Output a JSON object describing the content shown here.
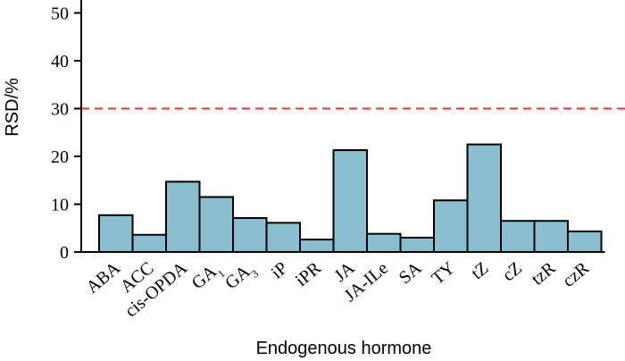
{
  "chart_data": {
    "type": "bar",
    "xlabel": "Endogenous hormone",
    "ylabel": "RSD/%",
    "ylim": [
      0,
      55
    ],
    "yticks": [
      0,
      10,
      20,
      30,
      40,
      50
    ],
    "categories": [
      "ABA",
      "ACC",
      "cis-OPDA",
      "GA1",
      "GA3",
      "iP",
      "iPR",
      "JA",
      "JA-ILe",
      "SA",
      "TY",
      "tZ",
      "cZ",
      "tzR",
      "czR"
    ],
    "category_labels": [
      {
        "base": "ABA"
      },
      {
        "base": "ACC"
      },
      {
        "base": "cis-OPDA"
      },
      {
        "base": "GA",
        "sub": "1"
      },
      {
        "base": "GA",
        "sub": "3"
      },
      {
        "base": "iP"
      },
      {
        "base": "iPR"
      },
      {
        "base": "JA"
      },
      {
        "base": "JA-ILe"
      },
      {
        "base": "SA"
      },
      {
        "base": "TY"
      },
      {
        "base": "tZ"
      },
      {
        "base": "cZ"
      },
      {
        "base": "tzR"
      },
      {
        "base": "czR"
      }
    ],
    "values": [
      7.7,
      3.6,
      14.7,
      11.5,
      7.1,
      6.1,
      2.6,
      21.3,
      3.8,
      3.0,
      10.8,
      22.5,
      6.5,
      6.5,
      4.3
    ],
    "reference_line": {
      "value": 30,
      "style": "dashed",
      "color": "#e8333a"
    },
    "bar_color": "#8bbfd0",
    "grid": false
  }
}
